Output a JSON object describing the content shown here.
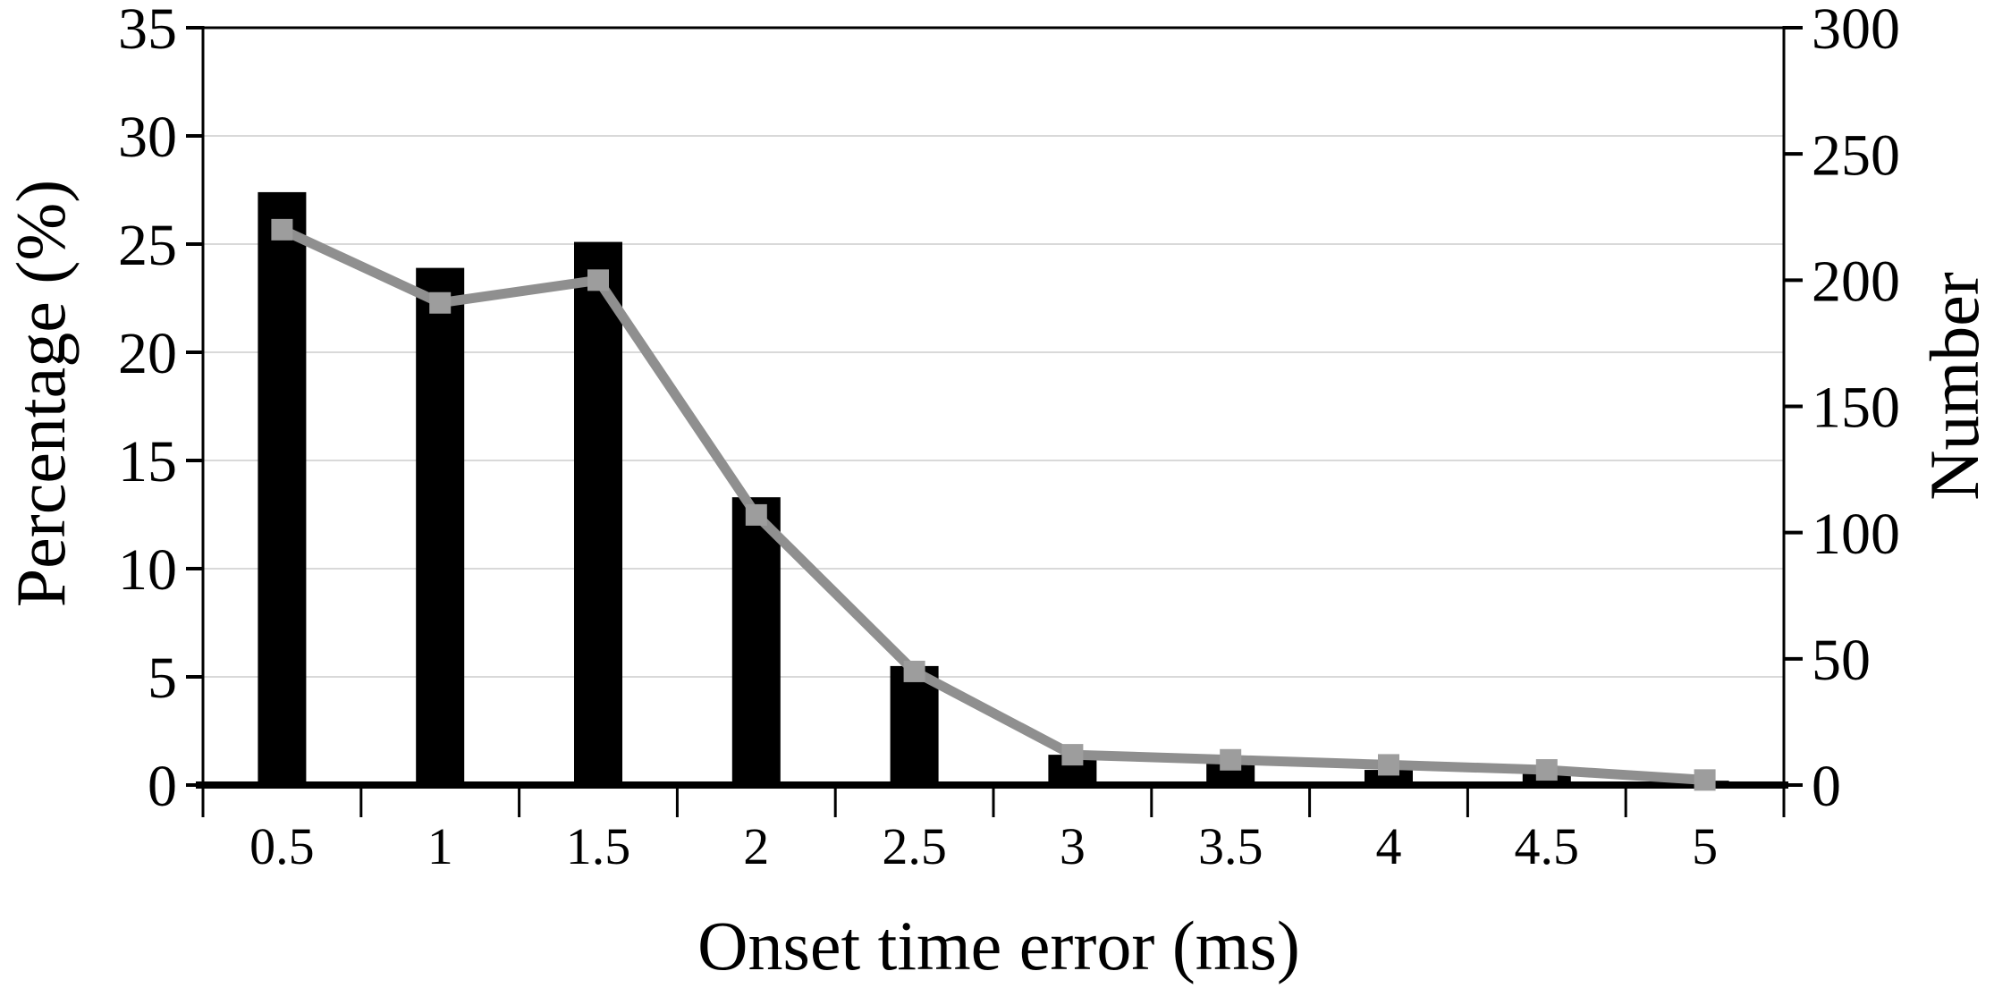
{
  "chart_data": {
    "type": "bar",
    "subtype": "bar-with-line-overlay-dual-axis",
    "title": "",
    "categories": [
      "0.5",
      "1",
      "1.5",
      "2",
      "2.5",
      "3",
      "3.5",
      "4",
      "4.5",
      "5"
    ],
    "series": [
      {
        "name": "Percentage",
        "type": "bar",
        "axis": "left",
        "values": [
          27.4,
          23.9,
          25.1,
          13.3,
          5.5,
          1.4,
          1.0,
          0.7,
          0.6,
          0.2
        ]
      },
      {
        "name": "Number",
        "type": "line",
        "axis": "right",
        "marker": "square",
        "values": [
          220,
          191,
          200,
          107,
          45,
          12,
          10,
          8,
          6,
          2
        ]
      }
    ],
    "xlabel": "Onset time error (ms)",
    "ylabel_left": "Percentage (%)",
    "ylabel_right": "Number",
    "ylim_left": [
      0,
      35
    ],
    "ylim_right": [
      0,
      300
    ],
    "y_left_ticks": [
      35,
      30,
      25,
      20,
      15,
      10,
      5,
      0
    ],
    "y_right_ticks": [
      300,
      250,
      200,
      150,
      100,
      50,
      0
    ],
    "grid": true,
    "legend": "none",
    "colors": {
      "bar": "#000000",
      "line": "#8f8f8f",
      "marker": "#9d9d9d",
      "grid": "#d9d9d9",
      "axis": "#000000",
      "text": "#000000",
      "background": "#ffffff"
    }
  }
}
